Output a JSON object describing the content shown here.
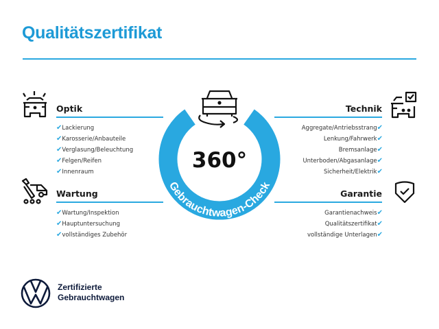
{
  "title": "Qualitätszertifikat",
  "colors": {
    "accent": "#29a8e0",
    "title": "#1d9ad6",
    "brand": "#0d1a3a"
  },
  "badge": {
    "value": "360°",
    "arc_text": "Gebrauchtwagen-Check",
    "icon": "car-rotate-icon"
  },
  "sections": {
    "optik": {
      "title": "Optik",
      "icon": "car-lights-icon",
      "items": [
        "Lackierung",
        "Karosserie/Anbauteile",
        "Verglasung/Beleuchtung",
        "Felgen/Reifen",
        "Innenraum"
      ]
    },
    "wartung": {
      "title": "Wartung",
      "icon": "maintenance-van-icon",
      "items": [
        "Wartung/Inspektion",
        "Hauptuntersuchung",
        "vollständiges Zubehör"
      ]
    },
    "technik": {
      "title": "Technik",
      "icon": "car-checkbox-icon",
      "items": [
        "Aggregate/Antriebsstrang",
        "Lenkung/Fahrwerk",
        "Bremsanlage",
        "Unterboden/Abgasanlage",
        "Sicherheit/Elektrik"
      ]
    },
    "garantie": {
      "title": "Garantie",
      "icon": "shield-check-icon",
      "items": [
        "Garantienachweis",
        "Qualitätszertifikat",
        "vollständige Unterlagen"
      ]
    }
  },
  "check_mark": "✔",
  "brand": {
    "line1": "Zertifizierte",
    "line2": "Gebrauchtwagen",
    "logo": "vw-logo"
  }
}
